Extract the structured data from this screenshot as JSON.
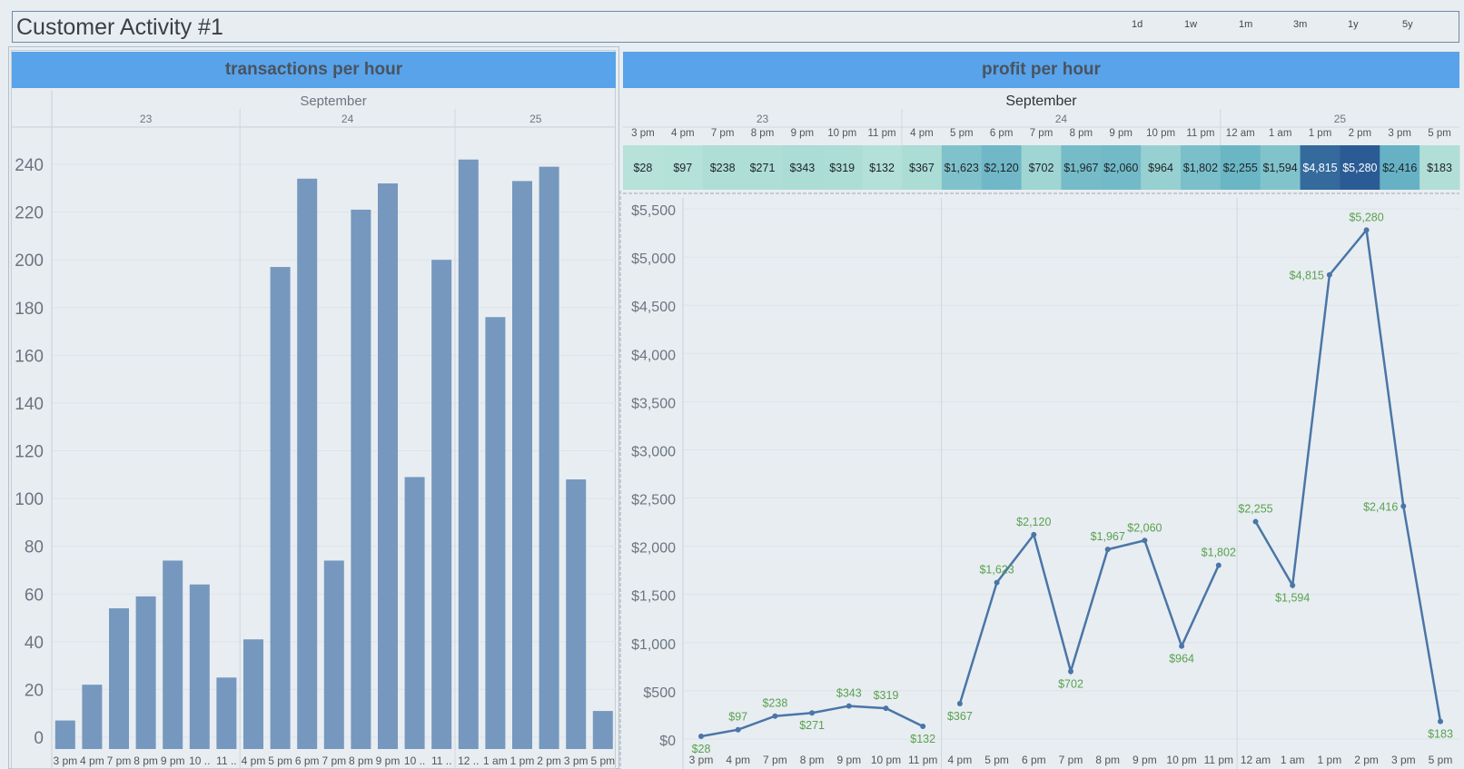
{
  "dashboard": {
    "title": "Customer Activity #1",
    "ranges": [
      "1d",
      "1w",
      "1m",
      "3m",
      "1y",
      "5y"
    ]
  },
  "left_panel": {
    "header": "transactions per hour"
  },
  "right_panel": {
    "header": "profit per hour"
  },
  "colors": {
    "header_bg": "#58a3ea",
    "bar": "#7698bf",
    "line": "#4a76a7",
    "label_green": "#59a14f",
    "heat_low": "#b3e0d8",
    "heat_high": "#2b5b94"
  },
  "chart_data": [
    {
      "type": "bar",
      "title": "transactions per hour",
      "month_label": "September",
      "day_groups": [
        {
          "day": "23",
          "count": 7
        },
        {
          "day": "24",
          "count": 8
        },
        {
          "day": "25",
          "count": 6
        }
      ],
      "categories": [
        "3 pm",
        "4 pm",
        "7 pm",
        "8 pm",
        "9 pm",
        "10 ..",
        "11 ..",
        "4 pm",
        "5 pm",
        "6 pm",
        "7 pm",
        "8 pm",
        "9 pm",
        "10 ..",
        "11 ..",
        "12 ..",
        "1 am",
        "1 pm",
        "2 pm",
        "3 pm",
        "5 pm"
      ],
      "values": [
        7,
        22,
        54,
        59,
        74,
        64,
        25,
        41,
        197,
        234,
        74,
        221,
        232,
        109,
        200,
        242,
        176,
        233,
        239,
        108,
        11
      ],
      "yticks": [
        0,
        20,
        40,
        60,
        80,
        100,
        120,
        140,
        160,
        180,
        200,
        220,
        240
      ],
      "ylim": [
        0,
        250
      ],
      "grid": true
    },
    {
      "type": "heatmap",
      "title": "profit per hour",
      "month_label": "September",
      "day_groups": [
        {
          "day": "23",
          "count": 7
        },
        {
          "day": "24",
          "count": 8
        },
        {
          "day": "25",
          "count": 6
        }
      ],
      "categories": [
        "3 pm",
        "4 pm",
        "7 pm",
        "8 pm",
        "9 pm",
        "10 pm",
        "11 pm",
        "4 pm",
        "5 pm",
        "6 pm",
        "7 pm",
        "8 pm",
        "9 pm",
        "10 pm",
        "11 pm",
        "12 am",
        "1 am",
        "1 pm",
        "2 pm",
        "3 pm",
        "5 pm"
      ],
      "values": [
        28,
        97,
        238,
        271,
        343,
        319,
        132,
        367,
        1623,
        2120,
        702,
        1967,
        2060,
        964,
        1802,
        2255,
        1594,
        4815,
        5280,
        2416,
        183
      ],
      "labels": [
        "$28",
        "$97",
        "$238",
        "$271",
        "$343",
        "$319",
        "$132",
        "$367",
        "$1,623",
        "$2,120",
        "$702",
        "$1,967",
        "$2,060",
        "$964",
        "$1,802",
        "$2,255",
        "$1,594",
        "$4,815",
        "$5,280",
        "$2,416",
        "$183"
      ]
    },
    {
      "type": "line",
      "day_groups": [
        {
          "day": "23",
          "count": 7
        },
        {
          "day": "24",
          "count": 8
        },
        {
          "day": "25",
          "count": 6
        }
      ],
      "categories": [
        "3 pm",
        "4 pm",
        "7 pm",
        "8 pm",
        "9 pm",
        "10 pm",
        "11 pm",
        "4 pm",
        "5 pm",
        "6 pm",
        "7 pm",
        "8 pm",
        "9 pm",
        "10 pm",
        "11 pm",
        "12 am",
        "1 am",
        "1 pm",
        "2 pm",
        "3 pm",
        "5 pm"
      ],
      "values": [
        28,
        97,
        238,
        271,
        343,
        319,
        132,
        367,
        1623,
        2120,
        702,
        1967,
        2060,
        964,
        1802,
        2255,
        1594,
        4815,
        5280,
        2416,
        183
      ],
      "labels": [
        "$28",
        "$97",
        "$238",
        "$271",
        "$343",
        "$319",
        "$132",
        "$367",
        "$1,623",
        "$2,120",
        "$702",
        "$1,967",
        "$2,060",
        "$964",
        "$1,802",
        "$2,255",
        "$1,594",
        "$4,815",
        "$5,280",
        "$2,416",
        "$183"
      ],
      "label_position": [
        "below",
        "above",
        "above",
        "below",
        "above",
        "above",
        "below",
        "below",
        "above",
        "above",
        "below",
        "above",
        "above",
        "below",
        "above",
        "above",
        "below",
        "left",
        "above",
        "left",
        "below"
      ],
      "yticks": [
        0,
        500,
        1000,
        1500,
        2000,
        2500,
        3000,
        3500,
        4000,
        4500,
        5000,
        5500
      ],
      "ytick_labels": [
        "$0",
        "$500",
        "$1,000",
        "$1,500",
        "$2,000",
        "$2,500",
        "$3,000",
        "$3,500",
        "$4,000",
        "$4,500",
        "$5,000",
        "$5,500"
      ],
      "ylim": [
        0,
        5600
      ],
      "grid": true
    }
  ]
}
